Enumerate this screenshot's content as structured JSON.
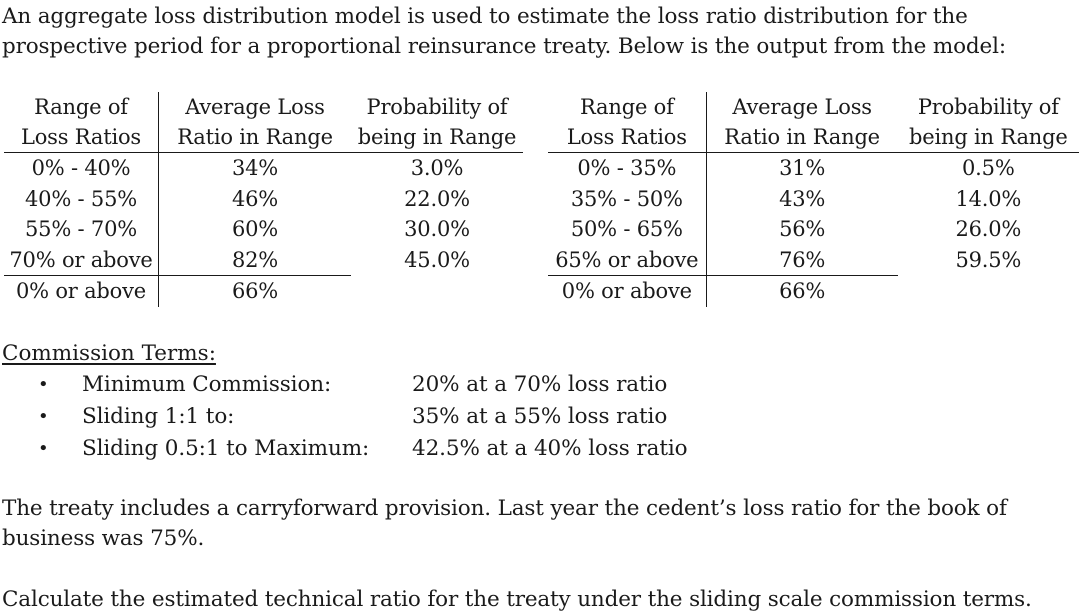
{
  "intro": "An aggregate loss distribution model is used to estimate the loss ratio distribution for the prospective period for a proportional reinsurance treaty. Below is the output from the model:",
  "tables": [
    {
      "headers": [
        {
          "line1": "Range of",
          "line2": "Loss Ratios"
        },
        {
          "line1": "Average Loss",
          "line2": "Ratio in Range"
        },
        {
          "line1": "Probability of",
          "line2": "being in Range"
        }
      ],
      "rows": [
        {
          "range": "0% - 40%",
          "avg": "34%",
          "prob": "3.0%"
        },
        {
          "range": "40% - 55%",
          "avg": "46%",
          "prob": "22.0%"
        },
        {
          "range": "55% - 70%",
          "avg": "60%",
          "prob": "30.0%"
        },
        {
          "range": "70% or above",
          "avg": "82%",
          "prob": "45.0%"
        }
      ],
      "total": {
        "range": "0% or above",
        "avg": "66%"
      }
    },
    {
      "headers": [
        {
          "line1": "Range of",
          "line2": "Loss Ratios"
        },
        {
          "line1": "Average Loss",
          "line2": "Ratio in Range"
        },
        {
          "line1": "Probability of",
          "line2": "being in Range"
        }
      ],
      "rows": [
        {
          "range": "0% - 35%",
          "avg": "31%",
          "prob": "0.5%"
        },
        {
          "range": "35% - 50%",
          "avg": "43%",
          "prob": "14.0%"
        },
        {
          "range": "50% - 65%",
          "avg": "56%",
          "prob": "26.0%"
        },
        {
          "range": "65% or above",
          "avg": "76%",
          "prob": "59.5%"
        }
      ],
      "total": {
        "range": "0% or above",
        "avg": "66%"
      }
    }
  ],
  "commission": {
    "heading": "Commission Terms:",
    "bullet": "•",
    "items": [
      {
        "label": "Minimum Commission:",
        "value": "20% at a 70% loss ratio"
      },
      {
        "label": "Sliding 1:1 to:",
        "value": "35% at a 55% loss ratio"
      },
      {
        "label": "Sliding 0.5:1 to Maximum:",
        "value": "42.5% at a 40% loss ratio"
      }
    ]
  },
  "carryforward": "The treaty includes a carryforward provision. Last year the cedent’s loss ratio for the book of business was 75%.",
  "question": "Calculate the estimated technical ratio for the treaty under the sliding scale commission terms."
}
